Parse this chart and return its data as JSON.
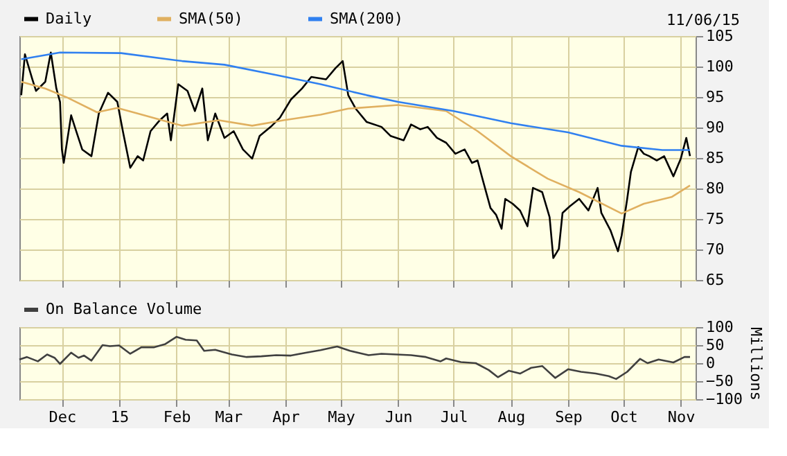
{
  "chart_data": [
    {
      "type": "line",
      "legend": "top",
      "grid": true,
      "tick_labels": "y",
      "annotations": [
        "11/06/15"
      ],
      "xlim": [
        "2014-11-08",
        "2015-11-09"
      ],
      "xticks": [
        "2014-12-01",
        "2015-01-01",
        "2015-02-01",
        "2015-03-01",
        "2015-04-01",
        "2015-05-01",
        "2015-06-01",
        "2015-07-01",
        "2015-08-01",
        "2015-09-01",
        "2015-10-01",
        "2015-11-01"
      ],
      "ylim": [
        65,
        105
      ],
      "yticks": [
        65,
        70,
        75,
        80,
        85,
        90,
        95,
        100,
        105
      ],
      "series": [
        {
          "name": "Daily",
          "color": "#000000",
          "x": [
            "2014-11-09",
            "2014-11-11",
            "2014-11-15",
            "2014-11-17",
            "2014-11-22",
            "2014-11-25",
            "2014-11-28",
            "2014-11-30",
            "2014-12-01",
            "2014-12-02",
            "2014-12-06",
            "2014-12-08",
            "2014-12-12",
            "2014-12-17",
            "2014-12-21",
            "2014-12-26",
            "2014-12-31",
            "2015-01-03",
            "2015-01-07",
            "2015-01-11",
            "2015-01-14",
            "2015-01-18",
            "2015-01-23",
            "2015-01-27",
            "2015-01-29",
            "2015-02-02",
            "2015-02-07",
            "2015-02-11",
            "2015-02-15",
            "2015-02-18",
            "2015-02-22",
            "2015-02-27",
            "2015-03-04",
            "2015-03-09",
            "2015-03-14",
            "2015-03-18",
            "2015-03-24",
            "2015-03-29",
            "2015-04-04",
            "2015-04-10",
            "2015-04-15",
            "2015-04-23",
            "2015-04-28",
            "2015-05-02",
            "2015-05-05",
            "2015-05-09",
            "2015-05-15",
            "2015-05-23",
            "2015-05-28",
            "2015-06-04",
            "2015-06-08",
            "2015-06-13",
            "2015-06-17",
            "2015-06-22",
            "2015-06-27",
            "2015-07-02",
            "2015-07-07",
            "2015-07-11",
            "2015-07-14",
            "2015-07-17",
            "2015-07-21",
            "2015-07-24",
            "2015-07-27",
            "2015-07-29",
            "2015-08-02",
            "2015-08-06",
            "2015-08-10",
            "2015-08-13",
            "2015-08-18",
            "2015-08-22",
            "2015-08-24",
            "2015-08-27",
            "2015-08-29",
            "2015-09-02",
            "2015-09-07",
            "2015-09-12",
            "2015-09-17",
            "2015-09-19",
            "2015-09-24",
            "2015-09-28",
            "2015-09-30",
            "2015-10-03",
            "2015-10-05",
            "2015-10-09",
            "2015-10-12",
            "2015-10-15",
            "2015-10-19",
            "2015-10-23",
            "2015-10-28",
            "2015-11-01",
            "2015-11-04",
            "2015-11-06"
          ],
          "values": [
            95.3,
            102,
            97.9,
            96,
            97.5,
            102.3,
            96.4,
            94.2,
            86.4,
            84.2,
            92,
            90.1,
            86.4,
            85.3,
            92.3,
            95.7,
            94.2,
            89.4,
            83.4,
            85.3,
            84.6,
            89.4,
            91.2,
            92.3,
            87.9,
            97.1,
            96,
            92.7,
            96.4,
            87.9,
            92.3,
            88.3,
            89.4,
            86.4,
            84.9,
            88.6,
            90.1,
            91.6,
            94.6,
            96.4,
            98.3,
            97.9,
            99.7,
            100.9,
            95.3,
            93.1,
            90.9,
            90.1,
            88.6,
            87.9,
            90.5,
            89.7,
            90.1,
            88.3,
            87.5,
            85.7,
            86.4,
            84.2,
            84.6,
            81.2,
            76.8,
            75.7,
            73.4,
            78.3,
            77.5,
            76.4,
            73.8,
            80.1,
            79.4,
            75.3,
            68.6,
            70.1,
            76,
            77.1,
            78.3,
            76.4,
            80.1,
            76,
            73.1,
            69.7,
            72.3,
            78.3,
            82.7,
            86.8,
            85.7,
            85.3,
            84.6,
            85.3,
            82,
            84.9,
            88.3,
            85.3
          ]
        },
        {
          "name": "SMA(50)",
          "color": "#e0b060",
          "x": [
            "2014-11-09",
            "2014-11-22",
            "2014-12-04",
            "2014-12-20",
            "2014-12-31",
            "2015-01-11",
            "2015-02-04",
            "2015-02-24",
            "2015-03-14",
            "2015-03-31",
            "2015-04-20",
            "2015-05-05",
            "2015-06-01",
            "2015-06-27",
            "2015-07-14",
            "2015-08-01",
            "2015-08-21",
            "2015-09-07",
            "2015-09-30",
            "2015-10-12",
            "2015-10-27",
            "2015-11-06"
          ],
          "values": [
            97.5,
            96.4,
            94.9,
            92.5,
            93.2,
            92.3,
            90.3,
            91.2,
            90.3,
            91.2,
            92.1,
            93.1,
            93.7,
            92.7,
            89.4,
            85.3,
            81.6,
            79.4,
            75.9,
            77.5,
            78.6,
            80.5
          ]
        },
        {
          "name": "SMA(200)",
          "color": "#3080f0",
          "x": [
            "2014-11-09",
            "2014-11-30",
            "2015-01-02",
            "2015-02-04",
            "2015-02-27",
            "2015-03-27",
            "2015-04-20",
            "2015-05-15",
            "2015-06-01",
            "2015-07-01",
            "2015-08-01",
            "2015-09-01",
            "2015-09-30",
            "2015-10-22",
            "2015-11-06"
          ],
          "values": [
            101.2,
            102.3,
            102.2,
            100.9,
            100.3,
            98.6,
            97.1,
            95.3,
            94.2,
            92.7,
            90.7,
            89.2,
            87,
            86.3,
            86.3
          ]
        }
      ]
    },
    {
      "type": "line",
      "legend": "top",
      "grid": true,
      "ylabel": "Millions",
      "xlim": [
        "2014-11-08",
        "2015-11-09"
      ],
      "xticks": [
        {
          "value": "2014-12-01",
          "label": "Dec"
        },
        {
          "value": "2015-01-01",
          "label": "15"
        },
        {
          "value": "2015-02-01",
          "label": "Feb"
        },
        {
          "value": "2015-03-01",
          "label": "Mar"
        },
        {
          "value": "2015-04-01",
          "label": "Apr"
        },
        {
          "value": "2015-05-01",
          "label": "May"
        },
        {
          "value": "2015-06-01",
          "label": "Jun"
        },
        {
          "value": "2015-07-01",
          "label": "Jul"
        },
        {
          "value": "2015-08-01",
          "label": "Aug"
        },
        {
          "value": "2015-09-01",
          "label": "Sep"
        },
        {
          "value": "2015-10-01",
          "label": "Oct"
        },
        {
          "value": "2015-11-01",
          "label": "Nov"
        }
      ],
      "ylim": [
        -100,
        100
      ],
      "yticks": [
        -100,
        -50,
        0,
        50,
        100
      ],
      "series": [
        {
          "name": "On Balance Volume",
          "color": "#404040",
          "x": [
            "2014-11-08",
            "2014-11-12",
            "2014-11-18",
            "2014-11-23",
            "2014-11-27",
            "2014-11-30",
            "2014-12-06",
            "2014-12-10",
            "2014-12-13",
            "2014-12-17",
            "2014-12-23",
            "2014-12-27",
            "2015-01-01",
            "2015-01-07",
            "2015-01-13",
            "2015-01-20",
            "2015-01-26",
            "2015-02-01",
            "2015-02-06",
            "2015-02-12",
            "2015-02-16",
            "2015-02-22",
            "2015-03-03",
            "2015-03-11",
            "2015-03-19",
            "2015-03-27",
            "2015-04-04",
            "2015-04-12",
            "2015-04-20",
            "2015-04-29",
            "2015-05-06",
            "2015-05-16",
            "2015-05-23",
            "2015-05-31",
            "2015-06-08",
            "2015-06-16",
            "2015-06-24",
            "2015-06-27",
            "2015-07-05",
            "2015-07-13",
            "2015-07-20",
            "2015-07-25",
            "2015-07-31",
            "2015-08-06",
            "2015-08-12",
            "2015-08-18",
            "2015-08-25",
            "2015-09-01",
            "2015-09-08",
            "2015-09-16",
            "2015-09-23",
            "2015-09-27",
            "2015-10-03",
            "2015-10-10",
            "2015-10-14",
            "2015-10-20",
            "2015-10-28",
            "2015-11-03",
            "2015-11-06"
          ],
          "values": [
            10,
            17,
            5,
            24,
            15,
            -2,
            29,
            15,
            21,
            7,
            50,
            47,
            49,
            26,
            44,
            44,
            53,
            73,
            65,
            63,
            34,
            37,
            24,
            17,
            19,
            22,
            21,
            29,
            36,
            46,
            34,
            22,
            26,
            24,
            22,
            17,
            5,
            13,
            3,
            0,
            -19,
            -39,
            -21,
            -29,
            -13,
            -8,
            -41,
            -17,
            -24,
            -29,
            -36,
            -44,
            -24,
            12,
            0,
            10,
            2,
            17,
            17
          ]
        }
      ]
    }
  ]
}
